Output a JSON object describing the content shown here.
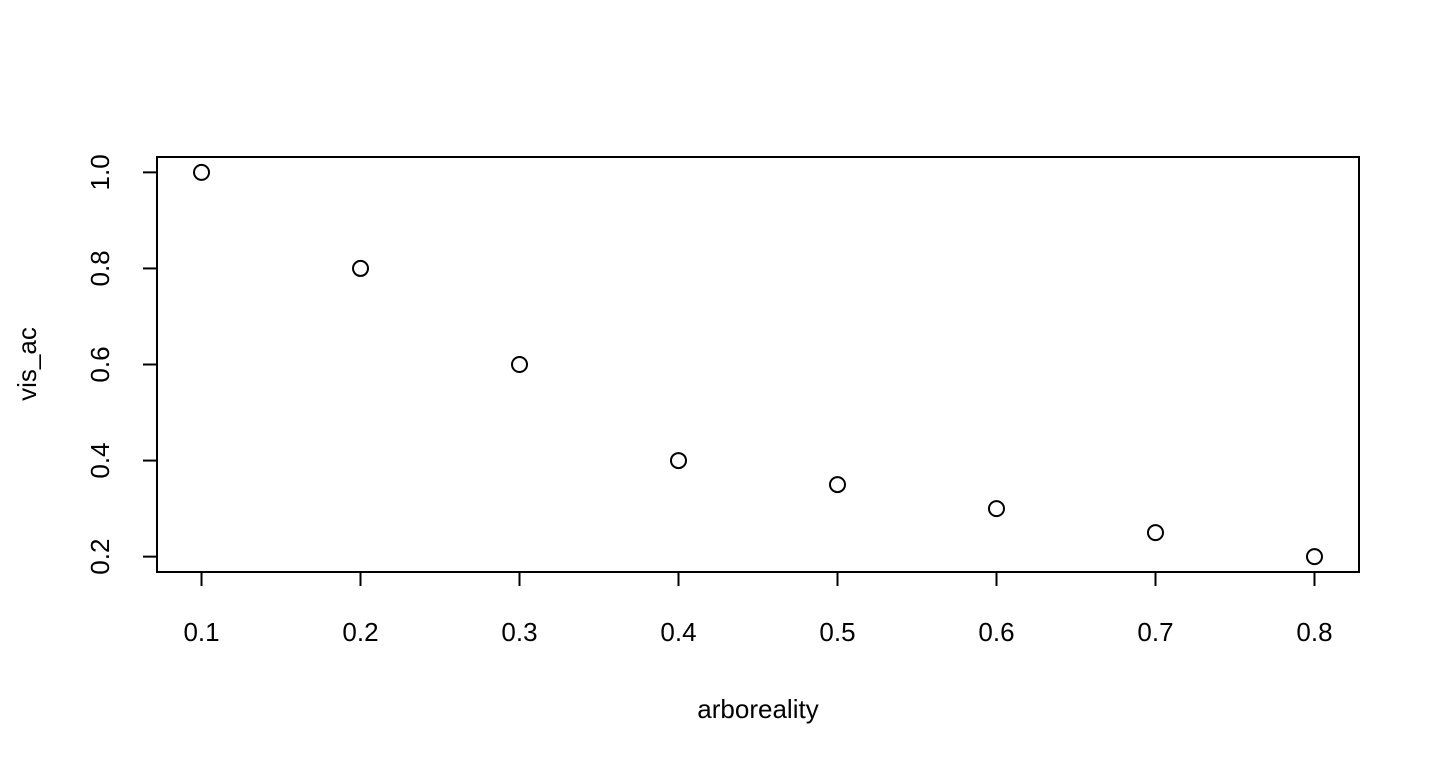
{
  "chart_data": {
    "type": "scatter",
    "title": "",
    "xlabel": "arboreality",
    "ylabel": "vis_ac",
    "xlim": [
      0.072,
      0.828
    ],
    "ylim": [
      0.168,
      1.032
    ],
    "x_ticks": [
      "0.1",
      "0.2",
      "0.3",
      "0.4",
      "0.5",
      "0.6",
      "0.7",
      "0.8"
    ],
    "y_ticks": [
      "0.2",
      "0.4",
      "0.6",
      "0.8",
      "1.0"
    ],
    "grid": false,
    "legend": "none",
    "marker": "open-circle",
    "points": [
      {
        "x": 0.1,
        "y": 1.0
      },
      {
        "x": 0.2,
        "y": 0.8
      },
      {
        "x": 0.3,
        "y": 0.6
      },
      {
        "x": 0.4,
        "y": 0.4
      },
      {
        "x": 0.5,
        "y": 0.35
      },
      {
        "x": 0.6,
        "y": 0.3
      },
      {
        "x": 0.7,
        "y": 0.25
      },
      {
        "x": 0.8,
        "y": 0.2
      }
    ]
  }
}
